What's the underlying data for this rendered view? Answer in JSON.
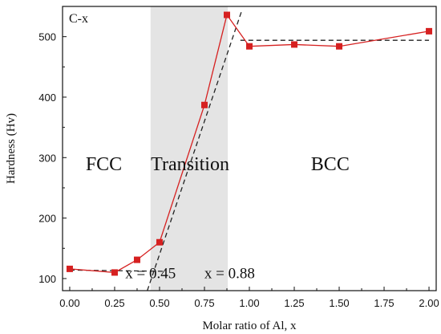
{
  "chart_data": {
    "type": "line",
    "panel_label": "C-x",
    "xlabel": "Molar ratio of Al, x",
    "ylabel": "Hardness (Hv)",
    "xlim": [
      -0.04,
      2.04
    ],
    "ylim": [
      80,
      550
    ],
    "xticks": [
      0.0,
      0.25,
      0.5,
      0.75,
      1.0,
      1.25,
      1.5,
      1.75,
      2.0
    ],
    "xtick_labels": [
      "0.00",
      "0.25",
      "0.50",
      "0.75",
      "1.00",
      "1.25",
      "1.50",
      "1.75",
      "2.00"
    ],
    "yticks": [
      100,
      200,
      300,
      400,
      500
    ],
    "ytick_labels": [
      "100",
      "200",
      "300",
      "400",
      "500"
    ],
    "series": [
      {
        "color": "#d62020",
        "marker": "square",
        "x": [
          0.0,
          0.25,
          0.375,
          0.5,
          0.75,
          0.875,
          1.0,
          1.25,
          1.5,
          2.0
        ],
        "y": [
          116,
          110,
          131,
          160,
          387,
          536,
          484,
          487,
          484,
          509
        ]
      }
    ],
    "fit_lines": [
      {
        "style": "dashed",
        "x": [
          0.0,
          0.53
        ],
        "y": [
          114,
          112
        ]
      },
      {
        "style": "dashed",
        "x": [
          0.4,
          0.96
        ],
        "y": [
          52,
          545
        ]
      },
      {
        "style": "dashed",
        "x": [
          0.95,
          2.0
        ],
        "y": [
          494,
          494
        ]
      }
    ],
    "shaded_region": {
      "x": [
        0.45,
        0.88
      ],
      "color": "#e4e4e4"
    },
    "region_labels": [
      {
        "text": "FCC",
        "x": 0.19,
        "y": 290
      },
      {
        "text": "Transition",
        "x": 0.67,
        "y": 290
      },
      {
        "text": "BCC",
        "x": 1.45,
        "y": 290
      }
    ],
    "annotations": [
      {
        "text": "x = 0.45",
        "x": 0.45,
        "y": 95
      },
      {
        "text": "x = 0.88",
        "x": 0.89,
        "y": 95
      }
    ]
  }
}
